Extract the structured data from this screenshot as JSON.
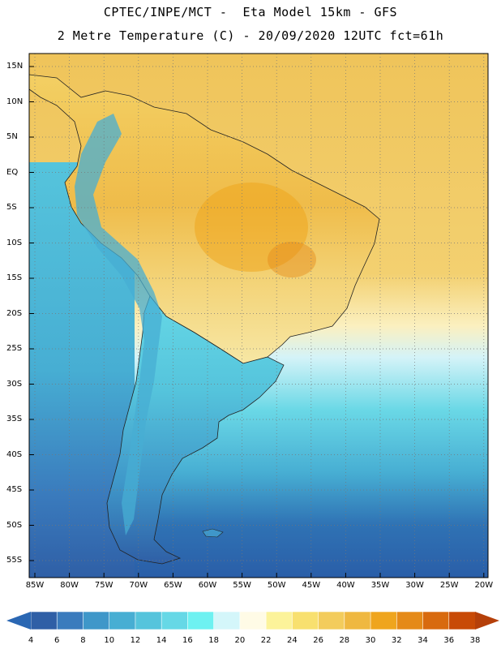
{
  "title": {
    "line1": "CPTEC/INPE/MCT -  Eta Model 15km - GFS",
    "line2": "2 Metre Temperature (C) - 20/09/2020 12UTC fct=61h"
  },
  "map": {
    "region": "South America",
    "lat_ticks": [
      "15N",
      "10N",
      "5N",
      "EQ",
      "5S",
      "10S",
      "15S",
      "20S",
      "25S",
      "30S",
      "35S",
      "40S",
      "45S",
      "50S",
      "55S"
    ],
    "lon_ticks": [
      "85W",
      "80W",
      "75W",
      "70W",
      "65W",
      "60W",
      "55W",
      "50W",
      "45W",
      "40W",
      "35W",
      "30W",
      "25W",
      "20W"
    ]
  },
  "colorbar": {
    "labels": [
      "4",
      "6",
      "8",
      "10",
      "12",
      "14",
      "16",
      "18",
      "20",
      "22",
      "24",
      "26",
      "28",
      "30",
      "32",
      "34",
      "36",
      "38"
    ],
    "colors": [
      "#2f5fa6",
      "#3a7bbd",
      "#3f97c9",
      "#47aed3",
      "#55c4dc",
      "#66d8e6",
      "#6ef1f1",
      "#d4f6fa",
      "#fffbe6",
      "#fcf39a",
      "#f8e06f",
      "#f3cc5c",
      "#efb840",
      "#efa51e",
      "#e58a18",
      "#d86a0e",
      "#c84a06"
    ],
    "low_color": "#2a67b3",
    "high_color": "#b5400a"
  }
}
